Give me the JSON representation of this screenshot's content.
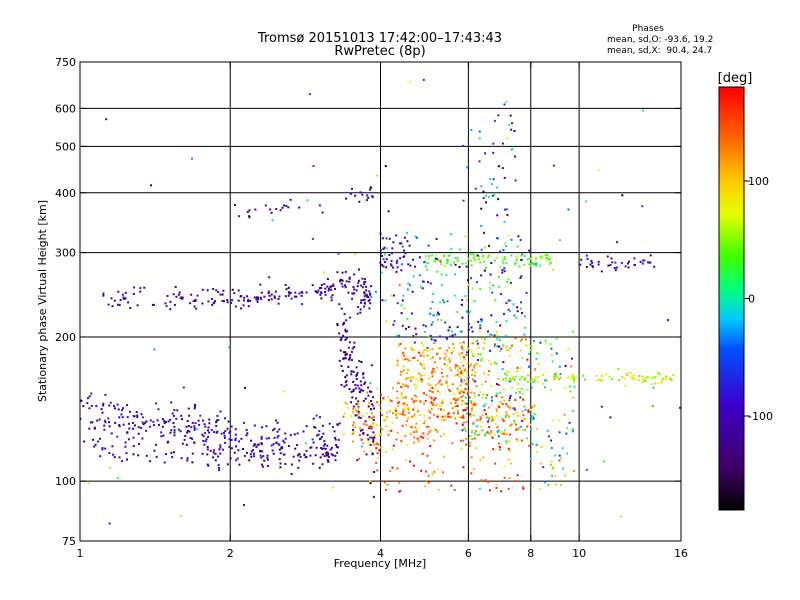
{
  "chart_data": {
    "type": "scatter",
    "title": "Tromsø 20151013 17:42:00–17:43:43",
    "subtitle": "RwPretec (8p)",
    "stats": {
      "heading": "Phases",
      "line_o": "mean, sd,O: -93.6, 19.2",
      "line_x": "mean, sd,X:  90.4, 24.7"
    },
    "xlabel": "Frequency [MHz]",
    "ylabel": "Stationary phase Virtual Height [km]",
    "x_scale": "log",
    "y_scale": "log",
    "xlim": [
      1,
      16
    ],
    "ylim": [
      75,
      750
    ],
    "x_ticks": [
      "1",
      "2",
      "4",
      "6",
      "8",
      "10",
      "16"
    ],
    "x_tick_values": [
      1,
      2,
      4,
      6,
      8,
      10,
      16
    ],
    "x_grid_values": [
      2,
      4,
      6,
      8,
      10
    ],
    "y_ticks": [
      "75",
      "100",
      "200",
      "300",
      "400",
      "500",
      "600",
      "750"
    ],
    "y_tick_values": [
      75,
      100,
      200,
      300,
      400,
      500,
      600,
      750
    ],
    "y_grid_values": [
      100,
      200,
      300,
      400,
      500,
      600
    ],
    "grid": true,
    "colorbar": {
      "label": "[deg]",
      "range": [
        -180,
        180
      ],
      "ticks": [
        "100",
        "0",
        "-100"
      ],
      "tick_values": [
        100,
        0,
        -100
      ]
    },
    "traces": [
      {
        "phase": -105,
        "spread": 0.04,
        "dots": 170,
        "points": [
          [
            1.0,
            130
          ],
          [
            1.3,
            130
          ],
          [
            1.7,
            128
          ],
          [
            2.0,
            124
          ],
          [
            2.5,
            123
          ],
          [
            3.0,
            125
          ],
          [
            3.3,
            124
          ]
        ]
      },
      {
        "phase": -110,
        "spread": 0.035,
        "dots": 160,
        "points": [
          [
            1.0,
            116
          ],
          [
            1.4,
            115
          ],
          [
            1.8,
            115
          ],
          [
            2.0,
            114
          ],
          [
            2.5,
            113
          ],
          [
            3.0,
            113
          ],
          [
            3.3,
            113
          ]
        ]
      },
      {
        "phase": -100,
        "spread": 0.05,
        "dots": 90,
        "points": [
          [
            1.0,
            140
          ],
          [
            1.3,
            138
          ],
          [
            1.6,
            136
          ],
          [
            2.0,
            132
          ]
        ]
      },
      {
        "phase": -112,
        "spread": 0.025,
        "dots": 160,
        "points": [
          [
            1.1,
            243
          ],
          [
            1.4,
            242
          ],
          [
            1.8,
            240
          ],
          [
            2.2,
            240
          ],
          [
            2.6,
            245
          ],
          [
            3.0,
            250
          ],
          [
            3.3,
            255
          ]
        ]
      },
      {
        "phase": -115,
        "spread": 0.04,
        "dots": 60,
        "points": [
          [
            3.3,
            260
          ],
          [
            3.6,
            250
          ],
          [
            3.8,
            240
          ]
        ]
      },
      {
        "phase": -105,
        "spread": 0.02,
        "dots": 35,
        "points": [
          [
            1.95,
            360
          ],
          [
            2.3,
            370
          ],
          [
            2.7,
            375
          ],
          [
            3.1,
            380
          ],
          [
            3.5,
            395
          ],
          [
            3.9,
            405
          ]
        ]
      },
      {
        "phase": -125,
        "spread": 0.12,
        "dots": 140,
        "points": [
          [
            3.3,
            210
          ],
          [
            3.5,
            170
          ],
          [
            3.7,
            140
          ],
          [
            3.9,
            125
          ]
        ]
      },
      {
        "phase": -110,
        "spread": 0.05,
        "dots": 35,
        "points": [
          [
            4.0,
            290
          ],
          [
            4.3,
            295
          ],
          [
            4.7,
            300
          ]
        ]
      },
      {
        "phase": 40,
        "spread": 0.02,
        "dots": 90,
        "points": [
          [
            4.9,
            290
          ],
          [
            5.5,
            290
          ],
          [
            6.5,
            290
          ],
          [
            8.0,
            288
          ],
          [
            9.0,
            288
          ]
        ]
      },
      {
        "phase": -90,
        "spread": 0.015,
        "dots": 40,
        "points": [
          [
            10.0,
            285
          ],
          [
            11.0,
            285
          ],
          [
            12.0,
            285
          ],
          [
            13.0,
            284
          ],
          [
            14.0,
            284
          ]
        ]
      },
      {
        "phase": 70,
        "spread": 0.015,
        "dots": 90,
        "points": [
          [
            7.0,
            165
          ],
          [
            8.0,
            165
          ],
          [
            9.0,
            165
          ],
          [
            10.0,
            165
          ],
          [
            12.0,
            164
          ],
          [
            14.0,
            164
          ],
          [
            15.5,
            164
          ]
        ]
      },
      {
        "phase": 120,
        "spread": 0.05,
        "dots": 100,
        "points": [
          [
            3.6,
            120
          ],
          [
            4.0,
            124
          ],
          [
            4.6,
            128
          ],
          [
            5.5,
            133
          ],
          [
            6.5,
            138
          ],
          [
            7.5,
            140
          ]
        ]
      },
      {
        "phase": 110,
        "spread": 0.06,
        "dots": 70,
        "points": [
          [
            3.4,
            135
          ],
          [
            4.0,
            140
          ],
          [
            4.6,
            145
          ]
        ]
      },
      {
        "phase": -80,
        "spread": 0.05,
        "dots": 35,
        "points": [
          [
            4.2,
            210
          ],
          [
            5.0,
            205
          ],
          [
            6.0,
            200
          ],
          [
            7.0,
            205
          ]
        ]
      }
    ],
    "clouds": [
      {
        "f_range": [
          4.3,
          6.2
        ],
        "h_range": [
          135,
          195
        ],
        "phase": 120,
        "phase_sd": 40,
        "dots": 260
      },
      {
        "f_range": [
          5.8,
          8.2
        ],
        "h_range": [
          120,
          200
        ],
        "phase": 60,
        "phase_sd": 120,
        "dots": 200
      },
      {
        "f_range": [
          3.8,
          8.0
        ],
        "h_range": [
          95,
          150
        ],
        "phase": 140,
        "phase_sd": 60,
        "dots": 150
      },
      {
        "f_range": [
          8.0,
          9.8
        ],
        "h_range": [
          95,
          200
        ],
        "phase": 40,
        "phase_sd": 110,
        "dots": 80
      },
      {
        "f_range": [
          4.0,
          8.0
        ],
        "h_range": [
          200,
          330
        ],
        "phase": -40,
        "phase_sd": 120,
        "dots": 180
      },
      {
        "f_range": [
          6.3,
          7.5
        ],
        "h_range": [
          330,
          620
        ],
        "phase": -60,
        "phase_sd": 120,
        "dots": 45
      },
      {
        "f_range": [
          1.0,
          16.0
        ],
        "h_range": [
          78,
          720
        ],
        "phase": 0,
        "phase_sd": 150,
        "dots": 70
      }
    ]
  }
}
